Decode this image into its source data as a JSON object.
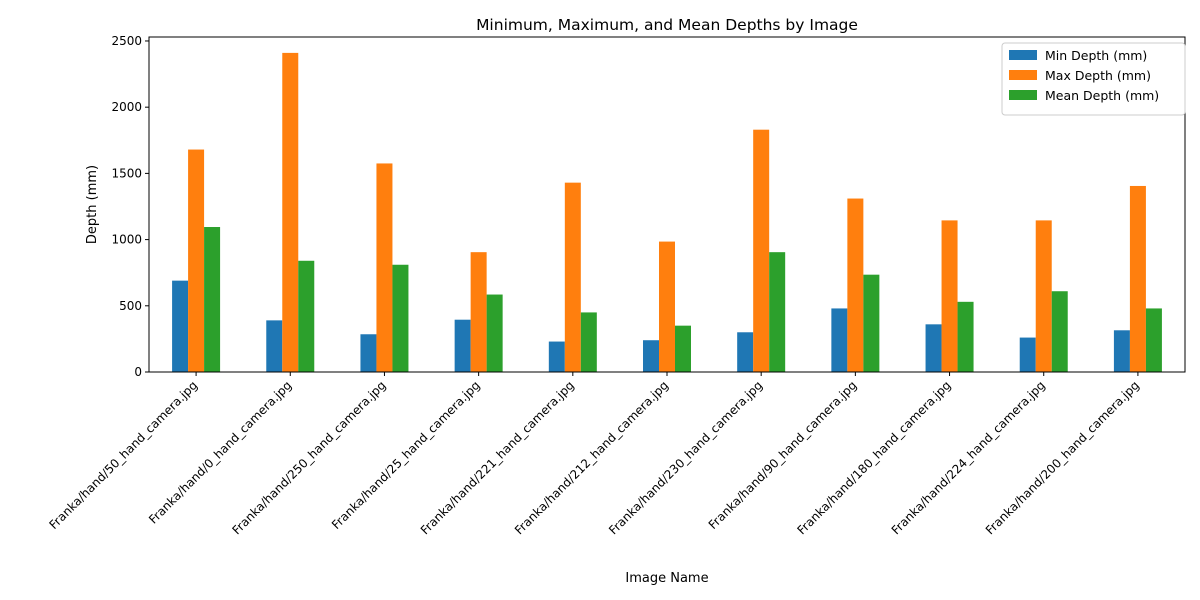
{
  "chart_data": {
    "type": "bar",
    "title": "Minimum, Maximum, and Mean Depths by Image",
    "xlabel": "Image Name",
    "ylabel": "Depth (mm)",
    "ylim": [
      0,
      2530
    ],
    "yticks": [
      0,
      500,
      1000,
      1500,
      2000,
      2500
    ],
    "grid": false,
    "legend_position": "top-right",
    "categories": [
      "Franka/hand/50_hand_camera.jpg",
      "Franka/hand/0_hand_camera.jpg",
      "Franka/hand/250_hand_camera.jpg",
      "Franka/hand/25_hand_camera.jpg",
      "Franka/hand/221_hand_camera.jpg",
      "Franka/hand/212_hand_camera.jpg",
      "Franka/hand/230_hand_camera.jpg",
      "Franka/hand/90_hand_camera.jpg",
      "Franka/hand/180_hand_camera.jpg",
      "Franka/hand/224_hand_camera.jpg",
      "Franka/hand/200_hand_camera.jpg"
    ],
    "series": [
      {
        "name": "Min Depth (mm)",
        "color": "#1f77b4",
        "values": [
          690,
          390,
          285,
          395,
          230,
          240,
          300,
          480,
          360,
          260,
          315
        ]
      },
      {
        "name": "Max Depth (mm)",
        "color": "#ff7f0e",
        "values": [
          1680,
          2410,
          1575,
          905,
          1430,
          985,
          1830,
          1310,
          1145,
          1145,
          1405
        ]
      },
      {
        "name": "Mean Depth (mm)",
        "color": "#2ca02c",
        "values": [
          1095,
          840,
          810,
          585,
          450,
          350,
          905,
          735,
          530,
          610,
          480
        ]
      }
    ]
  }
}
